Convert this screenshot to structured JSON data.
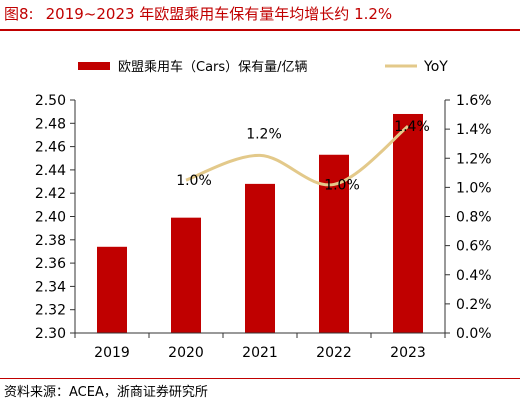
{
  "figure": {
    "number": "图8:",
    "title": "2019~2023 年欧盟乘用车保有量年均增长约 1.2%"
  },
  "source": "资料来源：ACEA，浙商证券研究所",
  "colors": {
    "title": "#c00000",
    "bar": "#c00000",
    "line": "#e3c98a"
  },
  "chart_data": {
    "type": "bar",
    "categories": [
      "2019",
      "2020",
      "2021",
      "2022",
      "2023"
    ],
    "series": [
      {
        "name": "欧盟乘用车（Cars）保有量/亿辆",
        "kind": "bar",
        "axis": "left",
        "values": [
          2.374,
          2.399,
          2.428,
          2.453,
          2.488
        ]
      },
      {
        "name": "YoY",
        "kind": "line",
        "axis": "right",
        "smooth": true,
        "values": [
          null,
          0.0105,
          0.0122,
          0.0102,
          0.0142
        ],
        "labels": [
          "",
          "1.0%",
          "1.2%",
          "1.0%",
          "1.4%"
        ]
      }
    ],
    "y_left": {
      "min": 2.3,
      "max": 2.5,
      "step": 0.02,
      "ticks": [
        "2.30",
        "2.32",
        "2.34",
        "2.36",
        "2.38",
        "2.40",
        "2.42",
        "2.44",
        "2.46",
        "2.48",
        "2.50"
      ]
    },
    "y_right": {
      "min": 0,
      "max": 0.016,
      "step": 0.002,
      "ticks": [
        "0.0%",
        "0.2%",
        "0.4%",
        "0.6%",
        "0.8%",
        "1.0%",
        "1.2%",
        "1.4%",
        "1.6%"
      ]
    },
    "legend_position": "top",
    "grid": false
  }
}
